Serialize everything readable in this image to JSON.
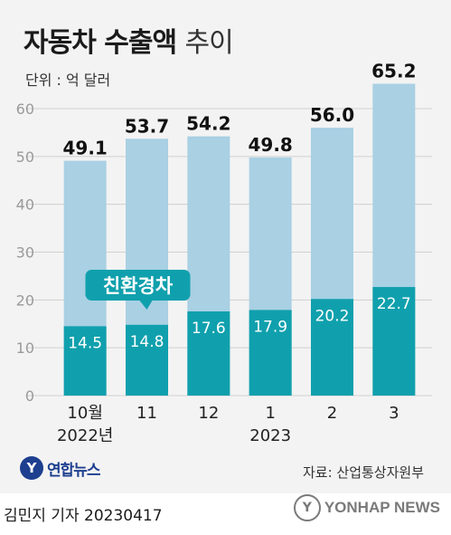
{
  "header": {
    "title_main": "자동차 수출액",
    "title_sub": "추이",
    "unit": "단위 : 억 달러"
  },
  "chart_data": {
    "type": "bar",
    "categories": [
      "10월",
      "11",
      "12",
      "1",
      "2",
      "3"
    ],
    "year_labels": [
      "2022년",
      "",
      "",
      "2023",
      "",
      ""
    ],
    "series": [
      {
        "values": [
          49.1,
          53.7,
          54.2,
          49.8,
          56.0,
          65.2
        ]
      },
      {
        "name": "친환경차",
        "values": [
          14.5,
          14.8,
          17.6,
          17.9,
          20.2,
          22.7
        ]
      }
    ],
    "total_labels": [
      "49.1",
      "53.7",
      "54.2",
      "49.8",
      "56.0",
      "65.2"
    ],
    "eco_labels": [
      "14.5",
      "14.8",
      "17.6",
      "17.9",
      "20.2",
      "22.7"
    ],
    "callout": "친환경차",
    "yticks": [
      0,
      10,
      20,
      30,
      40,
      50,
      60
    ],
    "ylim": [
      0,
      66
    ],
    "colors": {
      "total": "#a9d0e3",
      "eco": "#10a0ad",
      "callout": "#10a0ad",
      "grid": "#d0d0d0",
      "tick": "#9a9a9a"
    }
  },
  "footer": {
    "logo_mark": "Y",
    "logo_name": "연합뉴스",
    "source": "자료: 산업통상자원부",
    "byline": "김민지 기자  20230417",
    "agency_mark": "Y",
    "agency_name": "YONHAP NEWS"
  }
}
